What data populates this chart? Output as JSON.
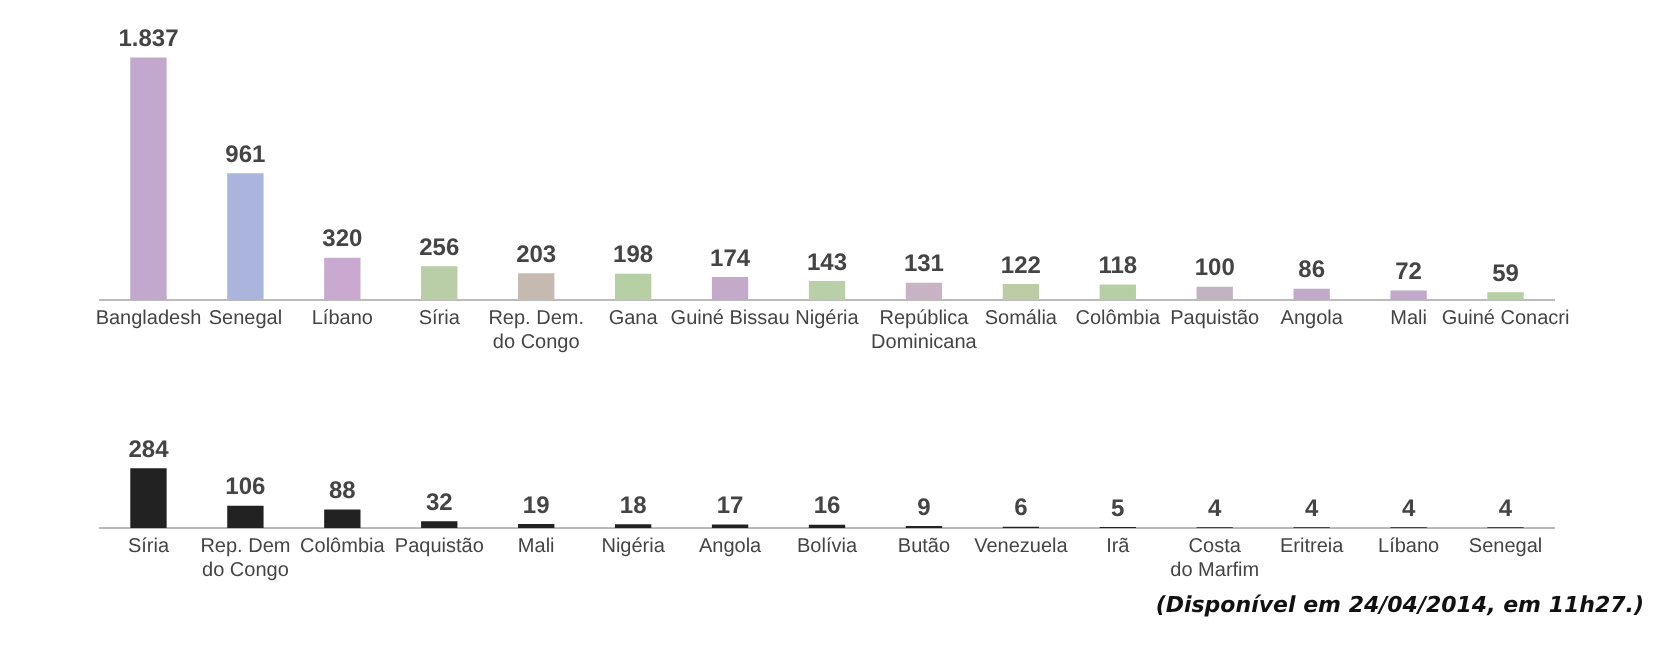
{
  "chart_data": [
    {
      "type": "bar",
      "categories": [
        "Bangladesh",
        "Senegal",
        "Líbano",
        "Síria",
        "Rep. Dem.\ndo Congo",
        "Gana",
        "Guiné Bissau",
        "Nigéria",
        "República\nDominicana",
        "Somália",
        "Colômbia",
        "Paquistão",
        "Angola",
        "Mali",
        "Guiné Conacri"
      ],
      "values": [
        1837,
        961,
        320,
        256,
        203,
        198,
        174,
        143,
        131,
        122,
        118,
        100,
        86,
        72,
        59
      ],
      "value_labels": [
        "1.837",
        "961",
        "320",
        "256",
        "203",
        "198",
        "174",
        "143",
        "131",
        "122",
        "118",
        "100",
        "86",
        "72",
        "59"
      ],
      "colors": [
        "#c2a8cc",
        "#aab4dc",
        "#c9a9cf",
        "#b9cda6",
        "#c6b9b0",
        "#b6cfa5",
        "#c3aacb",
        "#b8cfa8",
        "#c7b3c4",
        "#bccda6",
        "#b7cfa4",
        "#c2b3c3",
        "#c1a9ca",
        "#c4a8cb",
        "#b6cfa5"
      ],
      "tick_labels": "x"
    },
    {
      "type": "bar",
      "categories": [
        "Síria",
        "Rep. Dem\ndo Congo",
        "Colômbia",
        "Paquistão",
        "Mali",
        "Nigéria",
        "Angola",
        "Bolívia",
        "Butão",
        "Venezuela",
        "Irã",
        "Costa\ndo Marfim",
        "Eritreia",
        "Líbano",
        "Senegal"
      ],
      "values": [
        284,
        106,
        88,
        32,
        19,
        18,
        17,
        16,
        9,
        6,
        5,
        4,
        4,
        4,
        4
      ],
      "color": "#222222",
      "data_labels": true,
      "tick_labels": "x",
      "annotations": [
        "(Disponível em 24/04/2014, em 11h27.)"
      ]
    }
  ]
}
